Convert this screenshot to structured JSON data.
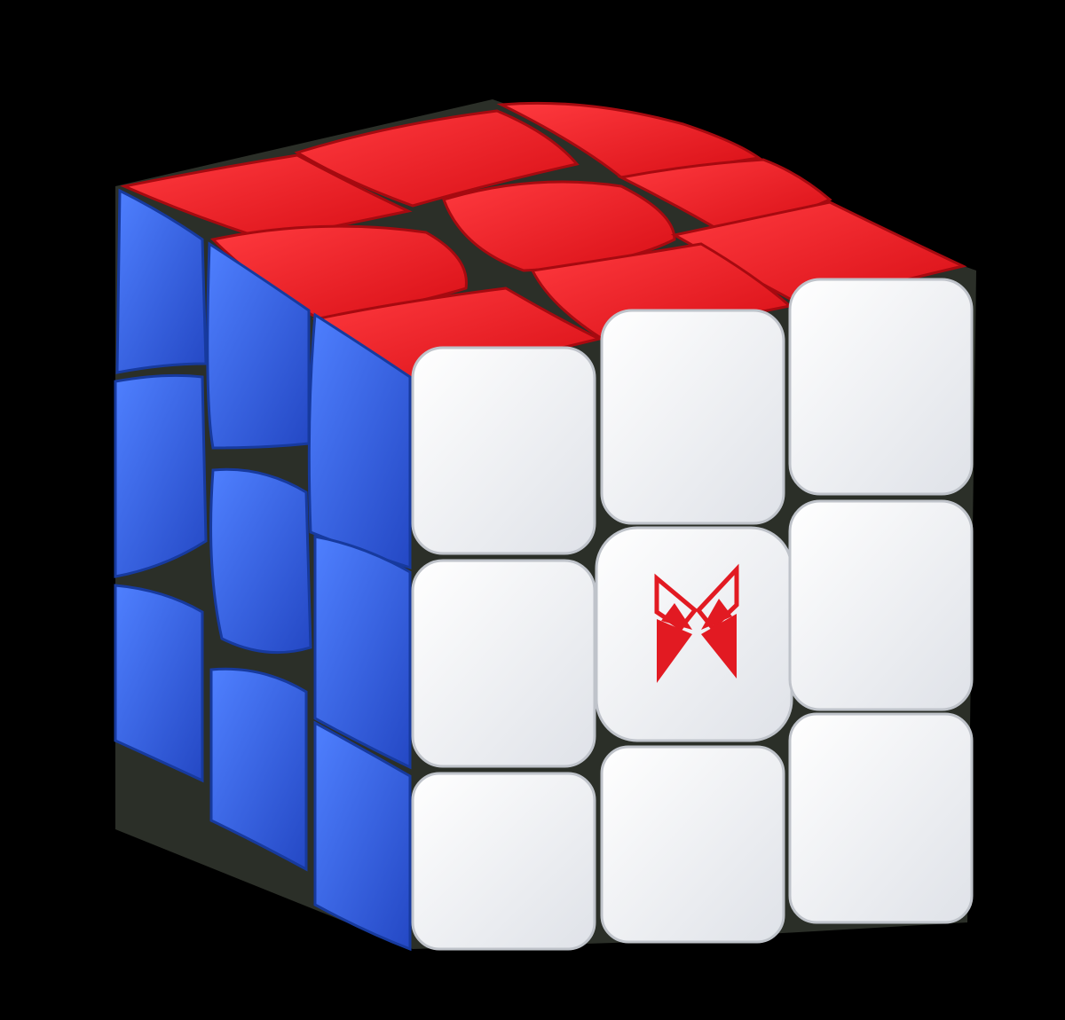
{
  "scene": {
    "subject": "3x3 speed cube",
    "background_color": "#000000",
    "faces": [
      {
        "name": "top",
        "color": "#e8141c",
        "shade": "#b80d14",
        "highlight": "#ff4a4e"
      },
      {
        "name": "left",
        "color": "#2f62e6",
        "shade": "#1e44b8",
        "highlight": "#5a86ff"
      },
      {
        "name": "front",
        "color": "#f1f2f4",
        "shade": "#d3d6dc",
        "highlight": "#ffffff"
      }
    ],
    "center_logo": {
      "icon": "butterfly-logo-icon",
      "color": "#e21a22"
    },
    "gap_color": "#2b2f28"
  }
}
